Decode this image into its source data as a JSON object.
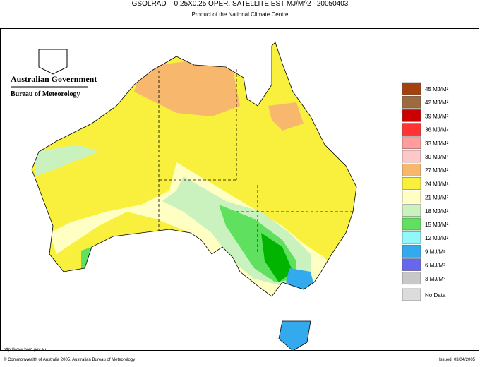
{
  "header": {
    "title": "GSOLRAD    0.25X0.25 OPER. SATELLITE EST MJ/M^2   20050403",
    "subtitle": "Product of the National Climate Centre"
  },
  "logo": {
    "government": "Australian Government",
    "bureau": "Bureau of Meteorology"
  },
  "legend": {
    "items": [
      {
        "label": "45 MJ/M²",
        "color": "#a3420e"
      },
      {
        "label": "42 MJ/M²",
        "color": "#9c6a3c"
      },
      {
        "label": "39 MJ/M²",
        "color": "#cc0000"
      },
      {
        "label": "36 MJ/M²",
        "color": "#ff3333"
      },
      {
        "label": "33 MJ/M²",
        "color": "#ff9c9c"
      },
      {
        "label": "30 MJ/M²",
        "color": "#ffc8c8"
      },
      {
        "label": "27 MJ/M²",
        "color": "#f7b86e"
      },
      {
        "label": "24 MJ/M²",
        "color": "#f8f03c"
      },
      {
        "label": "21 MJ/M²",
        "color": "#ffffc4"
      },
      {
        "label": "18 MJ/M²",
        "color": "#c9f2bf"
      },
      {
        "label": "15 MJ/M²",
        "color": "#5fe05f"
      },
      {
        "label": "12 MJ/M²",
        "color": "#8ff8f8"
      },
      {
        "label": "9 MJ/M²",
        "color": "#33aaee"
      },
      {
        "label": "6 MJ/M²",
        "color": "#6666ee"
      },
      {
        "label": "3 MJ/M²",
        "color": "#c8c8c8"
      },
      {
        "label": "No Data",
        "color": "#dcdcdc"
      }
    ]
  },
  "footer": {
    "url": "http://www.bom.gov.au",
    "copyright": "© Commonwealth of Australia 2005, Australian Bureau of Meteorology",
    "issued": "Issued: 03/04/2005"
  }
}
